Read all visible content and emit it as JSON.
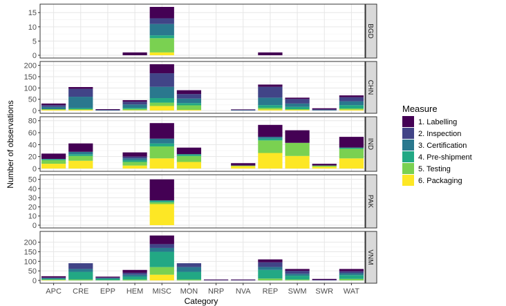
{
  "chart_data": {
    "type": "bar",
    "stacked": true,
    "facet_direction": "vertical",
    "xlabel": "Category",
    "ylabel": "Number of observations",
    "categories": [
      "APC",
      "CRE",
      "EPP",
      "HEM",
      "MISC",
      "MON",
      "NRP",
      "NVA",
      "REP",
      "SWM",
      "SWR",
      "WAT"
    ],
    "legend": {
      "title": "Measure",
      "position": "right",
      "items": [
        {
          "label": "1. Labelling",
          "color": "#440154"
        },
        {
          "label": "2. Inspection",
          "color": "#414487"
        },
        {
          "label": "3. Certification",
          "color": "#2A788E"
        },
        {
          "label": "4. Pre-shipment",
          "color": "#22A884"
        },
        {
          "label": "5. Testing",
          "color": "#7AD151"
        },
        {
          "label": "6. Packaging",
          "color": "#FDE725"
        }
      ]
    },
    "grid": true,
    "panels": [
      {
        "name": "BGD",
        "ylim": [
          0,
          17
        ],
        "yticks": [
          0,
          5,
          10,
          15
        ],
        "stacks": {
          "HEM": [
            1,
            0,
            0,
            0,
            0,
            0
          ],
          "MISC": [
            4,
            2,
            4,
            1,
            5,
            1
          ],
          "REP": [
            1,
            0,
            0,
            0,
            0,
            0
          ]
        }
      },
      {
        "name": "CHN",
        "ylim": [
          0,
          205
        ],
        "yticks": [
          0,
          50,
          100,
          150,
          200
        ],
        "stacks": {
          "APC": [
            7,
            8,
            10,
            0,
            3,
            3
          ],
          "CRE": [
            8,
            35,
            50,
            5,
            3,
            3
          ],
          "EPP": [
            3,
            2,
            1,
            0,
            0,
            0
          ],
          "HEM": [
            7,
            12,
            15,
            5,
            5,
            2
          ],
          "MISC": [
            40,
            60,
            50,
            20,
            15,
            20
          ],
          "MON": [
            17,
            20,
            20,
            10,
            20,
            3
          ],
          "NVA": [
            2,
            2,
            1,
            0,
            0,
            0
          ],
          "REP": [
            10,
            48,
            33,
            12,
            7,
            5
          ],
          "SWM": [
            6,
            20,
            15,
            10,
            3,
            3
          ],
          "SWR": [
            5,
            3,
            2,
            0,
            0,
            0
          ],
          "WAT": [
            8,
            18,
            17,
            15,
            5,
            4
          ]
        }
      },
      {
        "name": "IND",
        "ylim": [
          0,
          82
        ],
        "yticks": [
          0,
          20,
          40,
          60,
          80
        ],
        "stacks": {
          "APC": [
            9,
            0,
            0,
            2,
            6,
            8
          ],
          "CRE": [
            14,
            0,
            4,
            3,
            8,
            13
          ],
          "HEM": [
            7,
            3,
            3,
            3,
            6,
            5
          ],
          "MISC": [
            26,
            0,
            8,
            5,
            20,
            17
          ],
          "MON": [
            11,
            0,
            0,
            3,
            10,
            11
          ],
          "NVA": [
            4,
            0,
            0,
            0,
            1,
            4
          ],
          "REP": [
            20,
            0,
            3,
            3,
            21,
            26
          ],
          "SWM": [
            21,
            0,
            0,
            0,
            22,
            21
          ],
          "SWR": [
            3,
            0,
            0,
            0,
            2,
            3
          ],
          "WAT": [
            18,
            0,
            0,
            2,
            16,
            17
          ]
        }
      },
      {
        "name": "PAK",
        "ylim": [
          0,
          52
        ],
        "yticks": [
          0,
          10,
          20,
          30,
          40,
          50
        ],
        "stacks": {
          "MISC": [
            23,
            0,
            0,
            2,
            2,
            23
          ]
        }
      },
      {
        "name": "VNM",
        "ylim": [
          0,
          242
        ],
        "yticks": [
          0,
          50,
          100,
          150,
          200
        ],
        "stacks": {
          "APC": [
            7,
            3,
            3,
            5,
            2,
            2
          ],
          "CRE": [
            0,
            30,
            15,
            40,
            5,
            0
          ],
          "EPP": [
            5,
            3,
            3,
            7,
            2,
            0
          ],
          "HEM": [
            15,
            10,
            10,
            15,
            5,
            0
          ],
          "MISC": [
            45,
            20,
            20,
            80,
            40,
            30
          ],
          "MON": [
            0,
            20,
            25,
            40,
            5,
            0
          ],
          "NRP": [
            3,
            2,
            0,
            0,
            0,
            0
          ],
          "NVA": [
            3,
            2,
            0,
            0,
            0,
            0
          ],
          "REP": [
            15,
            25,
            15,
            45,
            10,
            0
          ],
          "SWM": [
            10,
            15,
            10,
            20,
            5,
            0
          ],
          "SWR": [
            5,
            3,
            0,
            0,
            0,
            0
          ],
          "WAT": [
            12,
            10,
            10,
            20,
            8,
            0
          ]
        }
      }
    ]
  }
}
